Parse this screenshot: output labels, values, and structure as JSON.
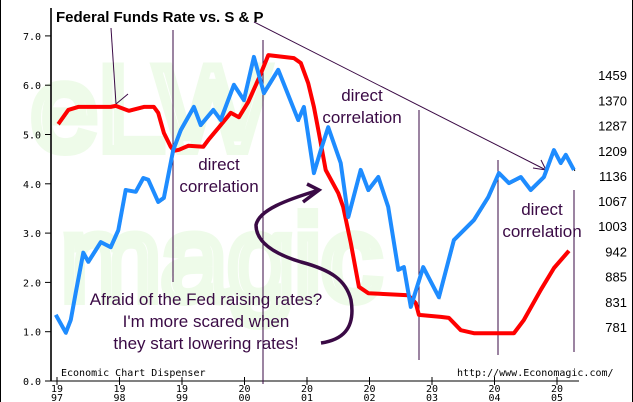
{
  "chart_data": {
    "type": "line",
    "title": "Federal Funds Rate vs. S & P",
    "xlabel": "",
    "ylabel": "",
    "xlim": [
      1997,
      2005.4
    ],
    "ylim": [
      0,
      7
    ],
    "left_ticks": [
      "0.0",
      "1.0",
      "2.0",
      "3.0",
      "4.0",
      "5.0",
      "6.0",
      "7.0"
    ],
    "x_ticks": [
      {
        "year": 1997,
        "top": "19",
        "bottom": "97"
      },
      {
        "year": 1998,
        "top": "19",
        "bottom": "98"
      },
      {
        "year": 1999,
        "top": "19",
        "bottom": "99"
      },
      {
        "year": 2000,
        "top": "20",
        "bottom": "00"
      },
      {
        "year": 2001,
        "top": "20",
        "bottom": "01"
      },
      {
        "year": 2002,
        "top": "20",
        "bottom": "02"
      },
      {
        "year": 2003,
        "top": "20",
        "bottom": "03"
      },
      {
        "year": 2004,
        "top": "20",
        "bottom": "04"
      },
      {
        "year": 2005,
        "top": "20",
        "bottom": "05"
      }
    ],
    "right_ticks": [
      "1459",
      "1370",
      "1287",
      "1209",
      "1136",
      "1067",
      "1003",
      "942",
      "885",
      "831",
      "781"
    ],
    "right_scale": "log",
    "series": [
      {
        "name": "Federal Funds Rate",
        "color": "#ff0000",
        "axis": "left",
        "x": [
          1997.02,
          1997.18,
          1997.34,
          1997.86,
          1997.94,
          1998.15,
          1998.39,
          1998.55,
          1998.62,
          1998.71,
          1998.82,
          1998.87,
          1998.95,
          1999.1,
          1999.34,
          1999.42,
          1999.58,
          1999.78,
          1999.91,
          2000.06,
          2000.24,
          2000.38,
          2000.79,
          2000.9,
          2001.02,
          2001.11,
          2001.19,
          2001.3,
          2001.5,
          2001.58,
          2001.7,
          2001.83,
          2001.98,
          2002.62,
          2002.74,
          2002.79,
          2003.14,
          2003.27,
          2003.46,
          2003.67,
          2004.31,
          2004.47,
          2004.74,
          2004.95,
          2005.19
        ],
        "values": [
          5.21,
          5.5,
          5.56,
          5.56,
          5.58,
          5.48,
          5.56,
          5.56,
          5.44,
          5.03,
          4.75,
          4.67,
          4.69,
          4.77,
          4.75,
          4.89,
          5.13,
          5.44,
          5.35,
          5.66,
          6.17,
          6.61,
          6.55,
          6.45,
          6.04,
          5.56,
          5.03,
          4.28,
          3.81,
          3.53,
          2.8,
          1.91,
          1.78,
          1.74,
          1.58,
          1.34,
          1.3,
          1.28,
          1.03,
          0.97,
          0.97,
          1.24,
          1.85,
          2.29,
          2.64
        ]
      },
      {
        "name": "S & P 500",
        "color": "#1e8cff",
        "axis": "right",
        "x": [
          1996.98,
          1997.14,
          1997.22,
          1997.3,
          1997.42,
          1997.5,
          1997.7,
          1997.86,
          1997.98,
          1998.1,
          1998.26,
          1998.38,
          1998.46,
          1998.62,
          1998.71,
          1998.86,
          1998.98,
          1999.19,
          1999.3,
          1999.5,
          1999.62,
          1999.83,
          1999.99,
          2000.15,
          2000.31,
          2000.54,
          2000.86,
          2000.95,
          2001.11,
          2001.22,
          2001.34,
          2001.54,
          2001.66,
          2001.86,
          2001.98,
          2002.14,
          2002.3,
          2002.46,
          2002.55,
          2002.66,
          2002.86,
          2003.11,
          2003.35,
          2003.67,
          2003.9,
          2004.07,
          2004.23,
          2004.42,
          2004.58,
          2004.79,
          2004.95,
          2005.06,
          2005.14,
          2005.27
        ],
        "values": [
          805,
          770,
          795,
          850,
          939,
          918,
          964,
          952,
          993,
          1097,
          1092,
          1130,
          1125,
          1065,
          1076,
          1211,
          1273,
          1348,
          1289,
          1338,
          1305,
          1424,
          1371,
          1526,
          1395,
          1478,
          1305,
          1348,
          1144,
          1211,
          1282,
          1173,
          1026,
          1153,
          1097,
          1133,
          1052,
          900,
          906,
          821,
          906,
          841,
          969,
          1018,
          1078,
          1144,
          1116,
          1133,
          1097,
          1133,
          1211,
          1173,
          1197,
          1153
        ]
      }
    ],
    "annotations": {
      "direct_1": [
        "direct",
        "correlation"
      ],
      "direct_2": [
        "direct",
        "correlation"
      ],
      "direct_3": [
        "direct",
        "correlation"
      ],
      "quote": [
        "Afraid of the Fed raising rates?",
        "I'm more scared when",
        "they start lowering rates!"
      ]
    },
    "footer_left": "Economic Chart Dispenser",
    "footer_right": "http://www.Economagic.com/",
    "watermark": "Economagic"
  }
}
